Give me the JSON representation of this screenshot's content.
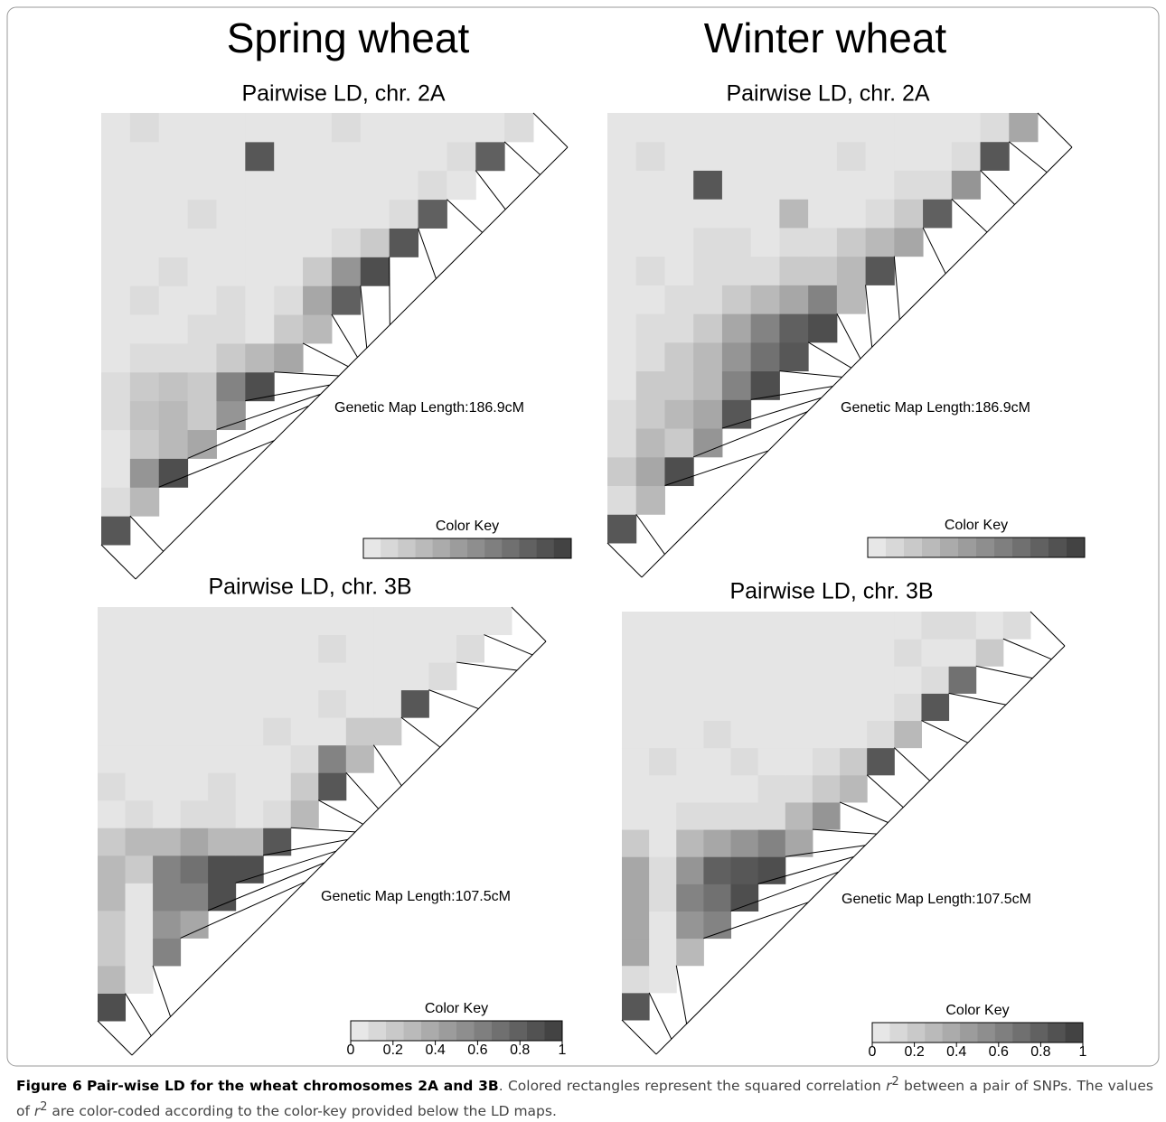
{
  "headers": [
    "Spring wheat",
    "Winter wheat"
  ],
  "chart_data": [
    {
      "type": "ld-heatmap",
      "title": "Pairwise LD, chr. 2A",
      "annotation": "Genetic Map Length:186.9cM",
      "legend_title": "Color Key",
      "zlim": [
        0,
        1
      ],
      "colors": [
        "#eeeeee",
        "#3c3c3c"
      ],
      "map_lim": [
        0,
        186.9
      ],
      "map_positions": [
        0,
        12,
        60,
        75,
        80,
        84,
        88,
        92,
        96,
        100,
        110,
        130,
        150,
        160,
        175,
        186.9
      ],
      "values": [
        [
          0.85
        ],
        [
          0.1,
          0.3
        ],
        [
          0.05,
          0.5,
          0.9
        ],
        [
          0.05,
          0.2,
          0.3,
          0.4
        ],
        [
          0.1,
          0.25,
          0.3,
          0.2,
          0.5
        ],
        [
          0.1,
          0.2,
          0.25,
          0.2,
          0.6,
          0.9
        ],
        [
          0.05,
          0.1,
          0.1,
          0.1,
          0.2,
          0.3,
          0.4
        ],
        [
          0.05,
          0.05,
          0.05,
          0.1,
          0.1,
          0.05,
          0.2,
          0.3
        ],
        [
          0.05,
          0.1,
          0.05,
          0.05,
          0.1,
          0.05,
          0.1,
          0.4,
          0.8
        ],
        [
          0.05,
          0.05,
          0.1,
          0.05,
          0.05,
          0.05,
          0.05,
          0.2,
          0.5,
          0.9
        ],
        [
          0.05,
          0.05,
          0.05,
          0.05,
          0.05,
          0.05,
          0.05,
          0.05,
          0.1,
          0.2,
          0.85
        ],
        [
          0.05,
          0.05,
          0.05,
          0.1,
          0.05,
          0.05,
          0.05,
          0.05,
          0.05,
          0.05,
          0.1,
          0.8
        ],
        [
          0.05,
          0.05,
          0.05,
          0.05,
          0.05,
          0.05,
          0.05,
          0.05,
          0.05,
          0.05,
          0.05,
          0.1,
          0.05
        ],
        [
          0.05,
          0.05,
          0.05,
          0.05,
          0.05,
          0.85,
          0.05,
          0.05,
          0.05,
          0.05,
          0.05,
          0.05,
          0.1,
          0.8
        ],
        [
          0.05,
          0.1,
          0.05,
          0.05,
          0.05,
          0.05,
          0.05,
          0.05,
          0.1,
          0.05,
          0.05,
          0.05,
          0.05,
          0.05,
          0.1
        ]
      ]
    },
    {
      "type": "ld-heatmap",
      "title": "Pairwise LD, chr. 2A",
      "annotation": "Genetic Map Length:186.9cM",
      "legend_title": "Color Key",
      "zlim": [
        0,
        1
      ],
      "colors": [
        "#eeeeee",
        "#3c3c3c"
      ],
      "map_lim": [
        0,
        186.9
      ],
      "map_positions": [
        0,
        10,
        55,
        72,
        78,
        83,
        87,
        91,
        95,
        100,
        112,
        132,
        150,
        162,
        176,
        186.9
      ],
      "values": [
        [
          0.85
        ],
        [
          0.1,
          0.3
        ],
        [
          0.2,
          0.4,
          0.9
        ],
        [
          0.1,
          0.3,
          0.2,
          0.5
        ],
        [
          0.1,
          0.2,
          0.3,
          0.4,
          0.85
        ],
        [
          0.05,
          0.2,
          0.2,
          0.3,
          0.6,
          0.9
        ],
        [
          0.05,
          0.1,
          0.2,
          0.3,
          0.5,
          0.7,
          0.85
        ],
        [
          0.05,
          0.1,
          0.1,
          0.2,
          0.4,
          0.6,
          0.8,
          0.9
        ],
        [
          0.05,
          0.05,
          0.1,
          0.1,
          0.2,
          0.3,
          0.4,
          0.6,
          0.3
        ],
        [
          0.05,
          0.1,
          0.05,
          0.1,
          0.1,
          0.1,
          0.2,
          0.2,
          0.3,
          0.85
        ],
        [
          0.05,
          0.05,
          0.05,
          0.1,
          0.1,
          0.05,
          0.1,
          0.1,
          0.2,
          0.3,
          0.4
        ],
        [
          0.05,
          0.05,
          0.05,
          0.05,
          0.05,
          0.05,
          0.3,
          0.05,
          0.05,
          0.1,
          0.2,
          0.8
        ],
        [
          0.05,
          0.05,
          0.05,
          0.85,
          0.05,
          0.05,
          0.05,
          0.05,
          0.05,
          0.05,
          0.1,
          0.1,
          0.5
        ],
        [
          0.05,
          0.1,
          0.05,
          0.05,
          0.05,
          0.05,
          0.05,
          0.05,
          0.1,
          0.05,
          0.05,
          0.05,
          0.1,
          0.85
        ],
        [
          0.05,
          0.05,
          0.05,
          0.05,
          0.05,
          0.05,
          0.05,
          0.05,
          0.05,
          0.05,
          0.05,
          0.05,
          0.05,
          0.1,
          0.4
        ]
      ]
    },
    {
      "type": "ld-heatmap",
      "title": "Pairwise LD, chr. 3B",
      "annotation": "Genetic Map Length:107.5cM",
      "legend_title": "Color Key",
      "zlim": [
        0,
        1
      ],
      "colors": [
        "#eeeeee",
        "#3c3c3c"
      ],
      "map_lim": [
        0,
        107.5
      ],
      "map_positions": [
        0,
        5,
        10,
        45,
        50,
        53,
        56,
        58,
        60,
        64,
        70,
        80,
        90,
        100,
        104,
        107.5
      ],
      "key_ticks": [
        0,
        0.2,
        0.4,
        0.6,
        0.8,
        1
      ],
      "values": [
        [
          0.9
        ],
        [
          0.3,
          0.05
        ],
        [
          0.2,
          0.05,
          0.6
        ],
        [
          0.2,
          0.05,
          0.5,
          0.4
        ],
        [
          0.3,
          0.05,
          0.6,
          0.6,
          0.9
        ],
        [
          0.3,
          0.2,
          0.6,
          0.7,
          0.9,
          0.9
        ],
        [
          0.2,
          0.3,
          0.3,
          0.4,
          0.3,
          0.3,
          0.85
        ],
        [
          0.05,
          0.1,
          0.05,
          0.1,
          0.1,
          0.05,
          0.1,
          0.3
        ],
        [
          0.1,
          0.05,
          0.05,
          0.05,
          0.1,
          0.05,
          0.05,
          0.2,
          0.85
        ],
        [
          0.05,
          0.05,
          0.05,
          0.05,
          0.05,
          0.05,
          0.05,
          0.1,
          0.6,
          0.3
        ],
        [
          0.05,
          0.05,
          0.05,
          0.05,
          0.05,
          0.05,
          0.1,
          0.05,
          0.05,
          0.2,
          0.2
        ],
        [
          0.05,
          0.05,
          0.05,
          0.05,
          0.05,
          0.05,
          0.05,
          0.05,
          0.1,
          0.05,
          0.05,
          0.85
        ],
        [
          0.05,
          0.05,
          0.05,
          0.05,
          0.05,
          0.05,
          0.05,
          0.05,
          0.05,
          0.05,
          0.05,
          0.05,
          0.1
        ],
        [
          0.05,
          0.05,
          0.05,
          0.05,
          0.05,
          0.05,
          0.05,
          0.05,
          0.1,
          0.05,
          0.05,
          0.05,
          0.05,
          0.1
        ],
        [
          0.05,
          0.05,
          0.05,
          0.05,
          0.05,
          0.05,
          0.05,
          0.05,
          0.05,
          0.05,
          0.05,
          0.05,
          0.05,
          0.05,
          0.05
        ]
      ]
    },
    {
      "type": "ld-heatmap",
      "title": "Pairwise LD, chr. 3B",
      "annotation": "Genetic Map Length:107.5cM",
      "legend_title": "Color Key",
      "zlim": [
        0,
        1
      ],
      "colors": [
        "#eeeeee",
        "#3c3c3c"
      ],
      "map_lim": [
        0,
        107.5
      ],
      "map_positions": [
        0,
        4,
        8,
        40,
        48,
        52,
        55,
        58,
        61,
        65,
        72,
        82,
        92,
        99,
        104,
        107.5
      ],
      "key_ticks": [
        0,
        0.2,
        0.4,
        0.6,
        0.8,
        1
      ],
      "values": [
        [
          0.85
        ],
        [
          0.1,
          0.05
        ],
        [
          0.4,
          0.05,
          0.3
        ],
        [
          0.4,
          0.05,
          0.5,
          0.6
        ],
        [
          0.4,
          0.1,
          0.6,
          0.7,
          0.9
        ],
        [
          0.4,
          0.1,
          0.5,
          0.8,
          0.85,
          0.9
        ],
        [
          0.2,
          0.05,
          0.3,
          0.4,
          0.5,
          0.6,
          0.4
        ],
        [
          0.05,
          0.05,
          0.1,
          0.1,
          0.1,
          0.1,
          0.3,
          0.5
        ],
        [
          0.05,
          0.05,
          0.05,
          0.05,
          0.05,
          0.1,
          0.1,
          0.2,
          0.3
        ],
        [
          0.05,
          0.1,
          0.05,
          0.05,
          0.1,
          0.05,
          0.05,
          0.1,
          0.2,
          0.85
        ],
        [
          0.05,
          0.05,
          0.05,
          0.1,
          0.05,
          0.05,
          0.05,
          0.05,
          0.05,
          0.1,
          0.3
        ],
        [
          0.05,
          0.05,
          0.05,
          0.05,
          0.05,
          0.05,
          0.05,
          0.05,
          0.05,
          0.05,
          0.1,
          0.85
        ],
        [
          0.05,
          0.05,
          0.05,
          0.05,
          0.05,
          0.05,
          0.05,
          0.05,
          0.05,
          0.05,
          0.05,
          0.1,
          0.7
        ],
        [
          0.05,
          0.05,
          0.05,
          0.05,
          0.05,
          0.05,
          0.05,
          0.05,
          0.05,
          0.05,
          0.1,
          0.05,
          0.05,
          0.2
        ],
        [
          0.05,
          0.05,
          0.05,
          0.05,
          0.05,
          0.05,
          0.05,
          0.05,
          0.05,
          0.05,
          0.05,
          0.1,
          0.1,
          0.05,
          0.1
        ]
      ]
    }
  ],
  "caption": {
    "label": "Figure 6",
    "title": "Pair-wise LD for the wheat chromosomes 2A and 3B",
    "parts": [
      ". Colored rectangles represent the squared correlation ",
      "r",
      "2",
      " between a pair of SNPs. The values of ",
      "r",
      "2",
      " are color-coded according to the color-key provided below the LD maps."
    ]
  }
}
